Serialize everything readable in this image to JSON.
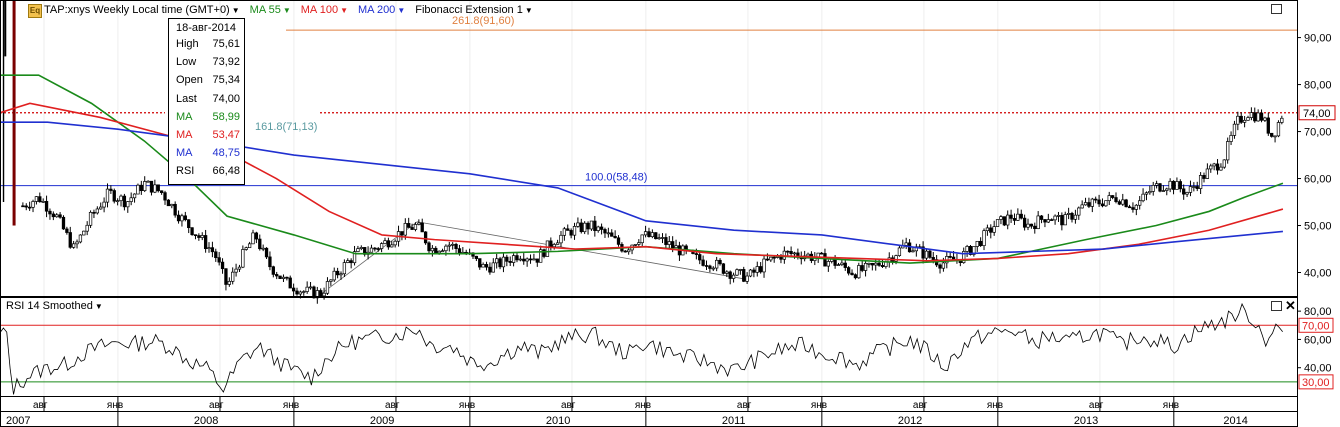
{
  "header": {
    "symbol_label": "TAP:xnys Weekly Local time (GMT+0)",
    "ma55_label": "MA 55",
    "ma100_label": "MA 100",
    "ma200_label": "MA 200",
    "fib_label": "Fibonacci Extension 1",
    "logo_text": "Eq"
  },
  "info_box": {
    "date": "18-авг-2014",
    "rows": [
      {
        "label": "High",
        "value": "75,61",
        "color": "#000000"
      },
      {
        "label": "Low",
        "value": "73,92",
        "color": "#000000"
      },
      {
        "label": "Open",
        "value": "75,34",
        "color": "#000000"
      },
      {
        "label": "Last",
        "value": "74,00",
        "color": "#000000"
      },
      {
        "label": "MA",
        "value": "58,99",
        "color": "#1a8a1a"
      },
      {
        "label": "MA",
        "value": "53,47",
        "color": "#e02020"
      },
      {
        "label": "MA",
        "value": "48,75",
        "color": "#2030d0"
      },
      {
        "label": "RSI",
        "value": "66,48",
        "color": "#000000"
      }
    ]
  },
  "rsi_header": {
    "label": "RSI 14 Smoothed"
  },
  "colors": {
    "ma55": "#1a8a1a",
    "ma100": "#e02020",
    "ma200": "#2030d0",
    "fib_text": "#e08040",
    "fib_blue": "#2030d0",
    "fib_teal": "#5a9aa0",
    "candle": "#000000",
    "rsi_line": "#000000",
    "rsi_upper": "#e02020",
    "rsi_lower": "#1a8a1a"
  },
  "chart_data": [
    {
      "type": "candlestick",
      "title": "TAP:xnys Weekly Local time (GMT+0)",
      "y_ticks": [
        "40,00",
        "50,00",
        "60,00",
        "70,00",
        "80,00",
        "90,00"
      ],
      "ylim": [
        35,
        98
      ],
      "last_price_label": "74,00",
      "last_price": 74.0,
      "x_month_labels": [
        {
          "label": "авг",
          "date": 2007.58
        },
        {
          "label": "янв",
          "date": 2008.0
        },
        {
          "label": "авг",
          "date": 2008.58
        },
        {
          "label": "янв",
          "date": 2009.0
        },
        {
          "label": "авг",
          "date": 2009.58
        },
        {
          "label": "янв",
          "date": 2010.0
        },
        {
          "label": "авг",
          "date": 2010.58
        },
        {
          "label": "янв",
          "date": 2011.0
        },
        {
          "label": "авг",
          "date": 2011.58
        },
        {
          "label": "янв",
          "date": 2012.0
        },
        {
          "label": "авг",
          "date": 2012.58
        },
        {
          "label": "янв",
          "date": 2013.0
        },
        {
          "label": "авг",
          "date": 2013.58
        },
        {
          "label": "янв",
          "date": 2014.0
        }
      ],
      "x_year_labels": [
        {
          "label": "2007",
          "date": 2007.33
        },
        {
          "label": "2008",
          "date": 2008.0
        },
        {
          "label": "2009",
          "date": 2009.0
        },
        {
          "label": "2010",
          "date": 2010.0
        },
        {
          "label": "2011",
          "date": 2011.0
        },
        {
          "label": "2012",
          "date": 2012.0
        },
        {
          "label": "2013",
          "date": 2013.0
        },
        {
          "label": "2014",
          "date": 2014.0
        }
      ],
      "price_path": [
        [
          2007.33,
          98
        ],
        [
          2007.4,
          97
        ],
        [
          2007.45,
          54
        ],
        [
          2007.55,
          56
        ],
        [
          2007.65,
          52
        ],
        [
          2007.75,
          45
        ],
        [
          2007.85,
          52
        ],
        [
          2007.95,
          57
        ],
        [
          2008.05,
          55
        ],
        [
          2008.15,
          59
        ],
        [
          2008.25,
          57
        ],
        [
          2008.35,
          52
        ],
        [
          2008.45,
          48
        ],
        [
          2008.55,
          44
        ],
        [
          2008.62,
          37
        ],
        [
          2008.7,
          43
        ],
        [
          2008.78,
          48
        ],
        [
          2008.85,
          42
        ],
        [
          2008.95,
          38
        ],
        [
          2009.05,
          36
        ],
        [
          2009.15,
          35.5
        ],
        [
          2009.25,
          40
        ],
        [
          2009.35,
          44
        ],
        [
          2009.45,
          45
        ],
        [
          2009.55,
          47
        ],
        [
          2009.62,
          49
        ],
        [
          2009.7,
          50
        ],
        [
          2009.78,
          45
        ],
        [
          2009.88,
          46
        ],
        [
          2009.98,
          44
        ],
        [
          2010.08,
          41
        ],
        [
          2010.18,
          42
        ],
        [
          2010.28,
          44
        ],
        [
          2010.38,
          43
        ],
        [
          2010.48,
          47
        ],
        [
          2010.58,
          49
        ],
        [
          2010.68,
          50
        ],
        [
          2010.78,
          48
        ],
        [
          2010.88,
          45
        ],
        [
          2010.98,
          48
        ],
        [
          2011.08,
          47
        ],
        [
          2011.18,
          45
        ],
        [
          2011.28,
          43
        ],
        [
          2011.38,
          42
        ],
        [
          2011.48,
          40
        ],
        [
          2011.58,
          39
        ],
        [
          2011.68,
          42
        ],
        [
          2011.78,
          44
        ],
        [
          2011.88,
          44
        ],
        [
          2011.98,
          43
        ],
        [
          2012.08,
          42
        ],
        [
          2012.18,
          40
        ],
        [
          2012.28,
          41
        ],
        [
          2012.38,
          43
        ],
        [
          2012.48,
          46
        ],
        [
          2012.58,
          44
        ],
        [
          2012.68,
          42
        ],
        [
          2012.78,
          43
        ],
        [
          2012.88,
          46
        ],
        [
          2012.98,
          50
        ],
        [
          2013.08,
          52
        ],
        [
          2013.18,
          50
        ],
        [
          2013.28,
          52
        ],
        [
          2013.38,
          51
        ],
        [
          2013.48,
          54
        ],
        [
          2013.58,
          55
        ],
        [
          2013.68,
          56
        ],
        [
          2013.78,
          54
        ],
        [
          2013.88,
          58
        ],
        [
          2013.98,
          59
        ],
        [
          2014.08,
          57
        ],
        [
          2014.18,
          61
        ],
        [
          2014.28,
          64
        ],
        [
          2014.36,
          72
        ],
        [
          2014.42,
          74
        ],
        [
          2014.5,
          73
        ],
        [
          2014.56,
          69
        ],
        [
          2014.62,
          74
        ]
      ],
      "series": [
        {
          "name": "MA 55",
          "values": [
            [
              2007.33,
              82
            ],
            [
              2007.55,
              82
            ],
            [
              2007.85,
              76
            ],
            [
              2008.15,
              68
            ],
            [
              2008.4,
              60
            ],
            [
              2008.62,
              52
            ],
            [
              2009.0,
              48
            ],
            [
              2009.35,
              44
            ],
            [
              2009.7,
              44
            ],
            [
              2010.0,
              44
            ],
            [
              2010.5,
              44.5
            ],
            [
              2011.0,
              45.5
            ],
            [
              2011.5,
              44
            ],
            [
              2012.0,
              43
            ],
            [
              2012.5,
              42
            ],
            [
              2013.0,
              43
            ],
            [
              2013.5,
              47
            ],
            [
              2013.9,
              50
            ],
            [
              2014.2,
              53
            ],
            [
              2014.4,
              56
            ],
            [
              2014.62,
              59
            ]
          ]
        },
        {
          "name": "MA 100",
          "values": [
            [
              2007.33,
              74
            ],
            [
              2007.5,
              76
            ],
            [
              2007.9,
              73
            ],
            [
              2008.3,
              69
            ],
            [
              2008.6,
              66
            ],
            [
              2008.9,
              60
            ],
            [
              2009.2,
              53
            ],
            [
              2009.5,
              48
            ],
            [
              2009.8,
              47
            ],
            [
              2010.2,
              46
            ],
            [
              2010.6,
              45
            ],
            [
              2011.0,
              45.5
            ],
            [
              2011.4,
              44
            ],
            [
              2011.8,
              43.5
            ],
            [
              2012.2,
              43
            ],
            [
              2012.6,
              42.5
            ],
            [
              2013.0,
              43
            ],
            [
              2013.4,
              44
            ],
            [
              2013.8,
              46
            ],
            [
              2014.2,
              49
            ],
            [
              2014.62,
              53.5
            ]
          ]
        },
        {
          "name": "MA 200",
          "values": [
            [
              2007.33,
              72
            ],
            [
              2007.6,
              72
            ],
            [
              2008.0,
              70.5
            ],
            [
              2008.5,
              68
            ],
            [
              2009.0,
              65
            ],
            [
              2009.5,
              63
            ],
            [
              2010.0,
              61
            ],
            [
              2010.5,
              58
            ],
            [
              2011.0,
              51
            ],
            [
              2011.5,
              49
            ],
            [
              2012.0,
              48
            ],
            [
              2012.4,
              46
            ],
            [
              2012.8,
              44
            ],
            [
              2013.2,
              44.5
            ],
            [
              2013.6,
              45
            ],
            [
              2014.0,
              46.5
            ],
            [
              2014.62,
              48.75
            ]
          ]
        }
      ],
      "fibonacci": {
        "levels": [
          {
            "label": "261.8(91,60)",
            "value": 91.6,
            "color_key": "fib_text"
          },
          {
            "label": "161.8(71,13)",
            "value": 71.13,
            "color_key": "fib_teal"
          },
          {
            "label": "100.0(58,48)",
            "value": 58.48,
            "color_key": "fib_blue"
          }
        ]
      }
    },
    {
      "type": "line",
      "title": "RSI 14 Smoothed",
      "y_ticks": [
        "40,00",
        "60,00",
        "80,00"
      ],
      "ylim": [
        20,
        90
      ],
      "upper_level": 70,
      "upper_label": "70,00",
      "lower_level": 30,
      "lower_label": "30,00",
      "values": [
        [
          2007.33,
          62
        ],
        [
          2007.36,
          70
        ],
        [
          2007.4,
          25
        ],
        [
          2007.5,
          35
        ],
        [
          2007.6,
          40
        ],
        [
          2007.7,
          42
        ],
        [
          2007.8,
          50
        ],
        [
          2007.9,
          55
        ],
        [
          2008.0,
          58
        ],
        [
          2008.1,
          57
        ],
        [
          2008.2,
          59
        ],
        [
          2008.3,
          55
        ],
        [
          2008.4,
          45
        ],
        [
          2008.5,
          40
        ],
        [
          2008.6,
          25
        ],
        [
          2008.7,
          45
        ],
        [
          2008.8,
          55
        ],
        [
          2008.9,
          45
        ],
        [
          2009.0,
          38
        ],
        [
          2009.1,
          33
        ],
        [
          2009.2,
          48
        ],
        [
          2009.3,
          57
        ],
        [
          2009.4,
          60
        ],
        [
          2009.5,
          62
        ],
        [
          2009.6,
          64
        ],
        [
          2009.7,
          68
        ],
        [
          2009.78,
          56
        ],
        [
          2009.9,
          55
        ],
        [
          2010.0,
          45
        ],
        [
          2010.1,
          43
        ],
        [
          2010.2,
          50
        ],
        [
          2010.3,
          55
        ],
        [
          2010.4,
          50
        ],
        [
          2010.5,
          58
        ],
        [
          2010.6,
          62
        ],
        [
          2010.7,
          64
        ],
        [
          2010.8,
          55
        ],
        [
          2010.9,
          50
        ],
        [
          2011.0,
          58
        ],
        [
          2011.1,
          53
        ],
        [
          2011.2,
          48
        ],
        [
          2011.3,
          46
        ],
        [
          2011.4,
          42
        ],
        [
          2011.5,
          38
        ],
        [
          2011.6,
          44
        ],
        [
          2011.7,
          50
        ],
        [
          2011.8,
          54
        ],
        [
          2011.9,
          56
        ],
        [
          2012.0,
          50
        ],
        [
          2012.1,
          48
        ],
        [
          2012.2,
          42
        ],
        [
          2012.3,
          50
        ],
        [
          2012.4,
          55
        ],
        [
          2012.5,
          60
        ],
        [
          2012.6,
          52
        ],
        [
          2012.7,
          40
        ],
        [
          2012.8,
          55
        ],
        [
          2012.9,
          62
        ],
        [
          2013.0,
          65
        ],
        [
          2013.1,
          66
        ],
        [
          2013.2,
          58
        ],
        [
          2013.3,
          62
        ],
        [
          2013.4,
          58
        ],
        [
          2013.5,
          63
        ],
        [
          2013.6,
          65
        ],
        [
          2013.7,
          56
        ],
        [
          2013.8,
          62
        ],
        [
          2013.9,
          60
        ],
        [
          2014.0,
          55
        ],
        [
          2014.1,
          64
        ],
        [
          2014.2,
          70
        ],
        [
          2014.3,
          74
        ],
        [
          2014.38,
          80
        ],
        [
          2014.45,
          75
        ],
        [
          2014.52,
          60
        ],
        [
          2014.58,
          68
        ],
        [
          2014.62,
          66
        ]
      ]
    }
  ]
}
